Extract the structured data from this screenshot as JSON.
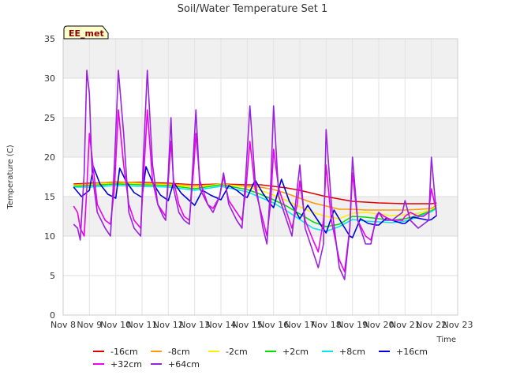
{
  "chart_data": {
    "type": "line",
    "title": "Soil/Water Temperature Set 1",
    "xlabel": "Time",
    "ylabel": "Temperature (C)",
    "badge": "EE_met",
    "ylim": [
      0,
      35
    ],
    "yticks": [
      0,
      5,
      10,
      15,
      20,
      25,
      30,
      35
    ],
    "xlim": [
      8,
      23
    ],
    "xticks": [
      8,
      9,
      10,
      11,
      12,
      13,
      14,
      15,
      16,
      17,
      18,
      19,
      20,
      21,
      22,
      23
    ],
    "xtick_labels": [
      "Nov 8",
      "Nov 9",
      "Nov 10",
      "Nov 11",
      "Nov 12",
      "Nov 13",
      "Nov 14",
      "Nov 15",
      "Nov 16",
      "Nov 17",
      "Nov 18",
      "Nov 19",
      "Nov 20",
      "Nov 21",
      "Nov 22",
      "Nov 23"
    ],
    "bands": [
      [
        10,
        15
      ],
      [
        20,
        25
      ],
      [
        30,
        35
      ]
    ],
    "legend_position": "bottom",
    "series": [
      {
        "name": "-16cm",
        "color": "#e00000",
        "x": [
          8.4,
          9,
          10,
          11,
          12,
          13,
          14,
          15,
          15.5,
          16,
          16.5,
          17,
          17.5,
          18,
          18.5,
          19,
          19.5,
          20,
          21,
          22,
          22.2
        ],
        "y": [
          16.6,
          16.7,
          16.8,
          16.8,
          16.7,
          16.5,
          16.6,
          16.5,
          16.5,
          16.3,
          16.1,
          15.8,
          15.4,
          15.0,
          14.7,
          14.4,
          14.3,
          14.2,
          14.1,
          14.1,
          14.2
        ]
      },
      {
        "name": "-8cm",
        "color": "#ff9900",
        "x": [
          8.4,
          9,
          10,
          11,
          12,
          13,
          14,
          15,
          15.5,
          16,
          16.5,
          17,
          17.5,
          18,
          18.5,
          19,
          19.5,
          20,
          21,
          21.6,
          22,
          22.2
        ],
        "y": [
          16.5,
          16.6,
          16.9,
          16.7,
          16.6,
          16.4,
          16.5,
          16.3,
          16.2,
          15.9,
          15.4,
          14.8,
          14.2,
          13.8,
          13.4,
          13.4,
          13.3,
          13.3,
          13.3,
          13.4,
          13.5,
          13.9
        ]
      },
      {
        "name": "-2cm",
        "color": "#ffee00",
        "x": [
          8.4,
          9,
          10,
          11,
          12,
          13,
          14,
          15,
          15.5,
          16,
          16.5,
          17,
          17.5,
          18,
          18.5,
          19,
          19.5,
          20,
          20.5,
          21,
          21.5,
          22,
          22.2
        ],
        "y": [
          16.4,
          16.5,
          16.7,
          16.6,
          16.5,
          16.2,
          16.6,
          16.2,
          15.8,
          15.2,
          14.5,
          13.7,
          13.0,
          12.5,
          12.2,
          12.9,
          13.0,
          12.8,
          12.6,
          12.7,
          12.9,
          13.3,
          13.8
        ]
      },
      {
        "name": "+2cm",
        "color": "#00dd00",
        "x": [
          8.4,
          9,
          10,
          11,
          12,
          13,
          14,
          15,
          15.5,
          16,
          16.5,
          17,
          17.5,
          18,
          18.5,
          19,
          19.5,
          20,
          20.5,
          21,
          21.5,
          22,
          22.2
        ],
        "y": [
          16.3,
          16.4,
          16.6,
          16.5,
          16.4,
          16.0,
          16.5,
          15.9,
          15.3,
          14.6,
          13.8,
          12.8,
          11.8,
          11.2,
          11.5,
          12.5,
          12.4,
          12.2,
          12.0,
          12.2,
          12.6,
          13.2,
          13.6
        ]
      },
      {
        "name": "+8cm",
        "color": "#00e5ee",
        "x": [
          8.4,
          9,
          10,
          11,
          12,
          13,
          14,
          15,
          15.5,
          16,
          16.5,
          17,
          17.5,
          18,
          18.5,
          19,
          19.5,
          20,
          20.5,
          21,
          21.5,
          22,
          22.2
        ],
        "y": [
          16.2,
          16.2,
          16.4,
          16.3,
          16.2,
          15.8,
          16.3,
          15.6,
          14.9,
          14.2,
          13.2,
          12.1,
          11.0,
          10.6,
          11.2,
          12.1,
          11.9,
          11.8,
          11.7,
          11.9,
          12.4,
          13.1,
          13.5
        ]
      },
      {
        "name": "+16cm",
        "color": "#0000dd",
        "x": [
          8.4,
          8.7,
          9.0,
          9.15,
          9.4,
          9.7,
          10.0,
          10.15,
          10.4,
          10.7,
          11.0,
          11.15,
          11.4,
          11.7,
          12.0,
          12.2,
          12.5,
          12.8,
          13.0,
          13.3,
          13.6,
          14.0,
          14.3,
          14.6,
          14.9,
          15.0,
          15.3,
          15.6,
          15.9,
          16.0,
          16.3,
          16.6,
          16.9,
          17.0,
          17.3,
          17.6,
          17.9,
          18.0,
          18.3,
          18.6,
          18.9,
          19.0,
          19.3,
          19.6,
          19.9,
          20.0,
          20.3,
          20.6,
          20.9,
          21.0,
          21.3,
          21.6,
          21.9,
          22.0,
          22.2
        ],
        "y": [
          16.2,
          15.0,
          15.8,
          18.8,
          16.6,
          15.3,
          14.8,
          18.6,
          16.9,
          15.5,
          14.9,
          18.8,
          16.8,
          15.2,
          14.5,
          16.8,
          15.4,
          14.5,
          13.9,
          15.8,
          15.2,
          14.6,
          16.4,
          15.8,
          15.0,
          14.9,
          17.1,
          15.4,
          14.0,
          13.6,
          17.2,
          14.4,
          12.8,
          12.2,
          13.9,
          12.4,
          10.9,
          10.4,
          13.3,
          11.6,
          10.0,
          9.8,
          12.2,
          11.6,
          11.4,
          11.4,
          12.3,
          11.9,
          11.6,
          11.6,
          12.4,
          12.2,
          12.0,
          12.1,
          12.6
        ]
      },
      {
        "name": "+32cm",
        "color": "#ee00ee",
        "x": [
          8.4,
          8.55,
          8.65,
          8.8,
          8.9,
          9.0,
          9.1,
          9.3,
          9.6,
          9.8,
          9.95,
          10.1,
          10.3,
          10.5,
          10.7,
          10.95,
          11.05,
          11.2,
          11.4,
          11.6,
          11.8,
          11.9,
          12.0,
          12.1,
          12.2,
          12.4,
          12.6,
          12.8,
          12.95,
          13.05,
          13.2,
          13.5,
          13.7,
          13.95,
          14.1,
          14.3,
          14.6,
          14.8,
          14.95,
          15.1,
          15.3,
          15.6,
          15.75,
          15.9,
          16.0,
          16.2,
          16.5,
          16.7,
          16.9,
          17.0,
          17.2,
          17.5,
          17.7,
          17.9,
          18.0,
          18.2,
          18.5,
          18.7,
          18.9,
          19.0,
          19.2,
          19.5,
          19.7,
          19.9,
          20.0,
          20.2,
          20.5,
          20.7,
          20.9,
          21.0,
          21.2,
          21.5,
          21.7,
          21.9,
          22.0,
          22.2
        ],
        "y": [
          13.8,
          13.0,
          11.0,
          10.0,
          16.0,
          23.0,
          20.0,
          14.0,
          12.0,
          11.5,
          16.0,
          26.0,
          19.0,
          14.0,
          12.0,
          11.0,
          17.0,
          26.0,
          17.0,
          14.0,
          13.0,
          12.5,
          17.0,
          22.0,
          17.0,
          14.0,
          12.5,
          12.0,
          18.0,
          23.0,
          17.0,
          14.0,
          13.5,
          15.0,
          17.5,
          14.5,
          13.0,
          12.0,
          16.0,
          22.0,
          16.0,
          12.0,
          10.0,
          14.5,
          21.0,
          16.0,
          13.0,
          11.0,
          14.0,
          17.0,
          12.0,
          9.5,
          8.0,
          12.0,
          19.0,
          12.0,
          7.0,
          5.5,
          11.0,
          18.0,
          12.0,
          10.0,
          9.5,
          12.0,
          13.0,
          12.5,
          12.0,
          12.0,
          12.0,
          12.5,
          13.0,
          12.5,
          12.5,
          13.0,
          16.0,
          13.0
        ]
      },
      {
        "name": "+64cm",
        "color": "#9922dd",
        "x": [
          8.4,
          8.55,
          8.65,
          8.8,
          8.9,
          9.0,
          9.1,
          9.3,
          9.6,
          9.8,
          9.95,
          10.1,
          10.3,
          10.5,
          10.7,
          10.95,
          11.05,
          11.2,
          11.4,
          11.6,
          11.8,
          11.9,
          12.0,
          12.1,
          12.2,
          12.4,
          12.6,
          12.8,
          12.95,
          13.05,
          13.2,
          13.5,
          13.7,
          13.95,
          14.1,
          14.3,
          14.6,
          14.8,
          14.95,
          15.1,
          15.3,
          15.6,
          15.75,
          15.9,
          16.0,
          16.2,
          16.5,
          16.7,
          16.9,
          17.0,
          17.2,
          17.5,
          17.7,
          17.9,
          18.0,
          18.2,
          18.5,
          18.7,
          18.9,
          19.0,
          19.2,
          19.5,
          19.7,
          19.9,
          20.0,
          20.2,
          20.5,
          20.7,
          20.9,
          21.0,
          21.2,
          21.5,
          21.7,
          21.9,
          22.0,
          22.2
        ],
        "y": [
          11.5,
          11.0,
          9.5,
          18.0,
          31.0,
          28.0,
          18.0,
          13.0,
          11.0,
          10.0,
          19.0,
          31.0,
          23.0,
          13.0,
          11.0,
          10.0,
          20.0,
          31.0,
          19.0,
          14.0,
          12.5,
          12.0,
          18.0,
          25.0,
          16.0,
          13.0,
          12.0,
          11.5,
          20.0,
          26.0,
          16.0,
          14.0,
          13.0,
          15.0,
          18.0,
          14.0,
          12.0,
          11.0,
          18.0,
          26.5,
          17.0,
          11.0,
          9.0,
          17.0,
          26.5,
          15.0,
          12.0,
          10.0,
          16.0,
          19.0,
          11.0,
          8.0,
          6.0,
          9.0,
          23.5,
          14.0,
          6.0,
          4.5,
          11.0,
          20.0,
          12.0,
          9.0,
          9.0,
          12.5,
          13.0,
          12.0,
          12.0,
          12.5,
          13.0,
          14.5,
          12.0,
          11.0,
          11.5,
          12.0,
          20.0,
          12.5
        ]
      }
    ]
  }
}
